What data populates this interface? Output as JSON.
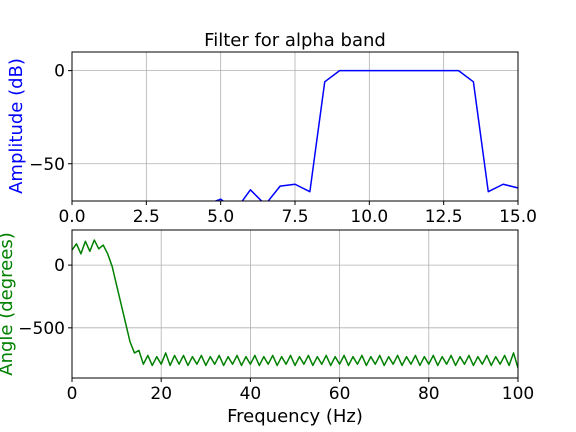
{
  "colors": {
    "amplitude": "#0000ff",
    "angle": "#008000",
    "grid": "#b0b0b0",
    "axes": "#000000",
    "background": "#ffffff"
  },
  "chart_data": [
    {
      "type": "line",
      "title": "Filter for alpha band",
      "xlabel": "",
      "ylabel": "Amplitude (dB)",
      "xlim": [
        0,
        15
      ],
      "ylim": [
        -70,
        10
      ],
      "grid": true,
      "xticks": [
        "0.0",
        "2.5",
        "5.0",
        "7.5",
        "10.0",
        "12.5",
        "15.0"
      ],
      "xtick_values": [
        0,
        2.5,
        5,
        7.5,
        10,
        12.5,
        15
      ],
      "yticks": [
        "0",
        "−50"
      ],
      "ytick_values": [
        0,
        -50
      ],
      "series": [
        {
          "color": "#0000ff",
          "x": [
            4.5,
            5,
            5.5,
            6,
            6.5,
            7,
            7.5,
            8,
            8.5,
            9,
            9.5,
            10,
            10.5,
            11,
            11.5,
            12,
            12.5,
            13,
            13.5,
            14,
            14.5,
            15
          ],
          "y": [
            -72,
            -69,
            -75,
            -64,
            -72,
            -62,
            -61,
            -65,
            -6,
            0,
            0,
            0,
            0,
            0,
            0,
            0,
            0,
            0,
            -6,
            -65,
            -61,
            -63
          ]
        }
      ]
    },
    {
      "type": "line",
      "title": "",
      "xlabel": "Frequency (Hz)",
      "ylabel": "Angle (degrees)",
      "xlim": [
        0,
        100
      ],
      "ylim": [
        -900,
        280
      ],
      "grid": true,
      "xticks": [
        "0",
        "20",
        "40",
        "60",
        "80",
        "100"
      ],
      "xtick_values": [
        0,
        20,
        40,
        60,
        80,
        100
      ],
      "yticks": [
        "0",
        "−500"
      ],
      "ytick_values": [
        0,
        -500
      ],
      "series": [
        {
          "color": "#008000",
          "x": [
            0,
            1,
            2,
            3,
            4,
            5,
            6,
            7,
            8,
            9,
            10,
            11,
            12,
            13,
            14,
            15,
            16,
            17,
            18,
            19,
            20,
            21,
            22,
            23,
            24,
            25,
            26,
            27,
            28,
            29,
            30,
            31,
            32,
            33,
            34,
            35,
            36,
            37,
            38,
            39,
            40,
            41,
            42,
            43,
            44,
            45,
            46,
            47,
            48,
            49,
            50,
            51,
            52,
            53,
            54,
            55,
            56,
            57,
            58,
            59,
            60,
            61,
            62,
            63,
            64,
            65,
            66,
            67,
            68,
            69,
            70,
            71,
            72,
            73,
            74,
            75,
            76,
            77,
            78,
            79,
            80,
            81,
            82,
            83,
            84,
            85,
            86,
            87,
            88,
            89,
            90,
            91,
            92,
            93,
            94,
            95,
            96,
            97,
            98,
            99,
            100
          ],
          "y": [
            120,
            170,
            90,
            190,
            110,
            200,
            130,
            160,
            90,
            -10,
            -160,
            -310,
            -460,
            -610,
            -700,
            -680,
            -790,
            -720,
            -800,
            -730,
            -790,
            -700,
            -800,
            -720,
            -790,
            -720,
            -800,
            -730,
            -790,
            -720,
            -800,
            -730,
            -790,
            -720,
            -800,
            -730,
            -790,
            -720,
            -800,
            -730,
            -790,
            -720,
            -800,
            -730,
            -790,
            -720,
            -800,
            -730,
            -790,
            -720,
            -800,
            -730,
            -790,
            -720,
            -800,
            -730,
            -790,
            -720,
            -800,
            -730,
            -790,
            -720,
            -800,
            -730,
            -790,
            -720,
            -800,
            -730,
            -790,
            -720,
            -800,
            -730,
            -790,
            -720,
            -800,
            -730,
            -790,
            -720,
            -800,
            -730,
            -790,
            -720,
            -800,
            -730,
            -790,
            -720,
            -800,
            -730,
            -790,
            -720,
            -800,
            -730,
            -790,
            -720,
            -800,
            -730,
            -790,
            -720,
            -800,
            -700,
            -820
          ]
        }
      ]
    }
  ]
}
